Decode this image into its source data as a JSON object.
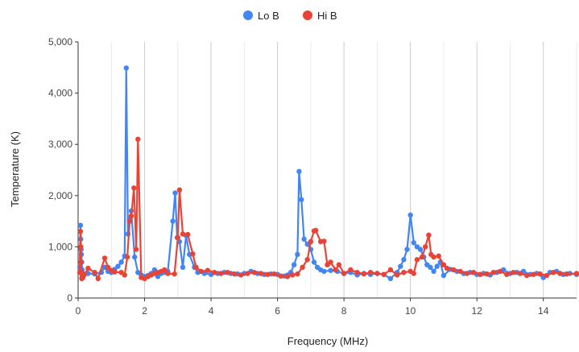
{
  "chart_data": {
    "type": "line",
    "xlabel": "Frequency (MHz)",
    "ylabel": "Temperature (K)",
    "xlim": [
      0,
      15
    ],
    "ylim": [
      0,
      5000
    ],
    "x_ticks": [
      "0",
      "2",
      "4",
      "6",
      "8",
      "10",
      "12",
      "14"
    ],
    "y_ticks": [
      "0",
      "1,000",
      "2,000",
      "3,000",
      "4,000",
      "5,000"
    ],
    "legend_position": "top",
    "grid": "vertical",
    "series": [
      {
        "name": "Lo B",
        "color": "#4285f4",
        "points": [
          [
            0.05,
            600
          ],
          [
            0.07,
            1420
          ],
          [
            0.08,
            1150
          ],
          [
            0.09,
            950
          ],
          [
            0.1,
            850
          ],
          [
            0.11,
            700
          ],
          [
            0.12,
            550
          ],
          [
            0.14,
            480
          ],
          [
            0.18,
            450
          ],
          [
            0.3,
            480
          ],
          [
            0.5,
            470
          ],
          [
            0.7,
            500
          ],
          [
            0.8,
            600
          ],
          [
            0.9,
            520
          ],
          [
            1.0,
            500
          ],
          [
            1.1,
            560
          ],
          [
            1.2,
            620
          ],
          [
            1.3,
            700
          ],
          [
            1.4,
            820
          ],
          [
            1.45,
            4490
          ],
          [
            1.5,
            1250
          ],
          [
            1.55,
            1550
          ],
          [
            1.6,
            1700
          ],
          [
            1.7,
            800
          ],
          [
            1.8,
            500
          ],
          [
            1.9,
            450
          ],
          [
            2.0,
            420
          ],
          [
            2.1,
            440
          ],
          [
            2.2,
            480
          ],
          [
            2.3,
            550
          ],
          [
            2.4,
            420
          ],
          [
            2.5,
            480
          ],
          [
            2.6,
            500
          ],
          [
            2.7,
            520
          ],
          [
            2.85,
            1500
          ],
          [
            2.92,
            2050
          ],
          [
            2.98,
            1180
          ],
          [
            3.05,
            1100
          ],
          [
            3.15,
            600
          ],
          [
            3.25,
            1220
          ],
          [
            3.35,
            850
          ],
          [
            3.5,
            600
          ],
          [
            3.6,
            500
          ],
          [
            3.8,
            480
          ],
          [
            4.0,
            460
          ],
          [
            4.2,
            480
          ],
          [
            4.4,
            500
          ],
          [
            4.6,
            480
          ],
          [
            4.8,
            470
          ],
          [
            5.0,
            480
          ],
          [
            5.2,
            520
          ],
          [
            5.4,
            480
          ],
          [
            5.6,
            460
          ],
          [
            5.8,
            470
          ],
          [
            6.0,
            460
          ],
          [
            6.2,
            430
          ],
          [
            6.3,
            450
          ],
          [
            6.4,
            500
          ],
          [
            6.5,
            650
          ],
          [
            6.6,
            850
          ],
          [
            6.65,
            2470
          ],
          [
            6.72,
            1920
          ],
          [
            6.8,
            1150
          ],
          [
            6.9,
            1050
          ],
          [
            7.0,
            950
          ],
          [
            7.1,
            700
          ],
          [
            7.2,
            600
          ],
          [
            7.3,
            550
          ],
          [
            7.4,
            520
          ],
          [
            7.6,
            540
          ],
          [
            7.8,
            520
          ],
          [
            8.0,
            480
          ],
          [
            8.2,
            500
          ],
          [
            8.4,
            450
          ],
          [
            8.6,
            480
          ],
          [
            8.8,
            460
          ],
          [
            9.0,
            480
          ],
          [
            9.2,
            460
          ],
          [
            9.4,
            380
          ],
          [
            9.6,
            500
          ],
          [
            9.7,
            620
          ],
          [
            9.8,
            750
          ],
          [
            9.9,
            950
          ],
          [
            10.0,
            1620
          ],
          [
            10.1,
            1080
          ],
          [
            10.2,
            1000
          ],
          [
            10.3,
            950
          ],
          [
            10.4,
            800
          ],
          [
            10.5,
            650
          ],
          [
            10.6,
            600
          ],
          [
            10.7,
            520
          ],
          [
            10.8,
            620
          ],
          [
            10.9,
            700
          ],
          [
            11.0,
            440
          ],
          [
            11.2,
            560
          ],
          [
            11.4,
            520
          ],
          [
            11.6,
            480
          ],
          [
            11.8,
            500
          ],
          [
            12.0,
            460
          ],
          [
            12.2,
            480
          ],
          [
            12.4,
            450
          ],
          [
            12.6,
            500
          ],
          [
            12.8,
            550
          ],
          [
            13.0,
            480
          ],
          [
            13.2,
            500
          ],
          [
            13.4,
            520
          ],
          [
            13.6,
            460
          ],
          [
            13.8,
            480
          ],
          [
            14.0,
            400
          ],
          [
            14.2,
            500
          ],
          [
            14.4,
            520
          ],
          [
            14.6,
            460
          ],
          [
            14.8,
            480
          ],
          [
            15.0,
            460
          ]
        ]
      },
      {
        "name": "Hi B",
        "color": "#ea4335",
        "points": [
          [
            0.05,
            500
          ],
          [
            0.07,
            1300
          ],
          [
            0.08,
            1000
          ],
          [
            0.09,
            700
          ],
          [
            0.1,
            500
          ],
          [
            0.11,
            380
          ],
          [
            0.12,
            420
          ],
          [
            0.14,
            400
          ],
          [
            0.18,
            450
          ],
          [
            0.3,
            580
          ],
          [
            0.5,
            500
          ],
          [
            0.6,
            380
          ],
          [
            0.8,
            780
          ],
          [
            0.9,
            600
          ],
          [
            1.0,
            540
          ],
          [
            1.1,
            510
          ],
          [
            1.3,
            500
          ],
          [
            1.4,
            450
          ],
          [
            1.48,
            800
          ],
          [
            1.55,
            1500
          ],
          [
            1.6,
            1600
          ],
          [
            1.68,
            2150
          ],
          [
            1.75,
            950
          ],
          [
            1.8,
            3100
          ],
          [
            1.9,
            400
          ],
          [
            2.0,
            380
          ],
          [
            2.1,
            420
          ],
          [
            2.2,
            450
          ],
          [
            2.3,
            480
          ],
          [
            2.4,
            500
          ],
          [
            2.5,
            520
          ],
          [
            2.6,
            550
          ],
          [
            2.7,
            480
          ],
          [
            2.9,
            470
          ],
          [
            3.0,
            1180
          ],
          [
            3.05,
            2110
          ],
          [
            3.15,
            1250
          ],
          [
            3.3,
            1240
          ],
          [
            3.45,
            860
          ],
          [
            3.55,
            600
          ],
          [
            3.7,
            520
          ],
          [
            3.9,
            540
          ],
          [
            4.1,
            500
          ],
          [
            4.3,
            480
          ],
          [
            4.5,
            500
          ],
          [
            4.7,
            470
          ],
          [
            4.9,
            450
          ],
          [
            5.1,
            480
          ],
          [
            5.3,
            500
          ],
          [
            5.5,
            480
          ],
          [
            5.7,
            460
          ],
          [
            5.9,
            470
          ],
          [
            6.1,
            430
          ],
          [
            6.3,
            420
          ],
          [
            6.45,
            450
          ],
          [
            6.6,
            470
          ],
          [
            6.75,
            600
          ],
          [
            6.9,
            750
          ],
          [
            7.0,
            1100
          ],
          [
            7.1,
            1310
          ],
          [
            7.15,
            1320
          ],
          [
            7.3,
            1100
          ],
          [
            7.4,
            1110
          ],
          [
            7.5,
            650
          ],
          [
            7.6,
            700
          ],
          [
            7.75,
            550
          ],
          [
            7.85,
            650
          ],
          [
            8.0,
            480
          ],
          [
            8.2,
            550
          ],
          [
            8.4,
            500
          ],
          [
            8.6,
            470
          ],
          [
            8.8,
            500
          ],
          [
            9.0,
            480
          ],
          [
            9.2,
            460
          ],
          [
            9.4,
            550
          ],
          [
            9.6,
            450
          ],
          [
            9.8,
            500
          ],
          [
            10.0,
            520
          ],
          [
            10.1,
            480
          ],
          [
            10.2,
            750
          ],
          [
            10.35,
            800
          ],
          [
            10.45,
            1000
          ],
          [
            10.55,
            1230
          ],
          [
            10.62,
            850
          ],
          [
            10.7,
            800
          ],
          [
            10.85,
            820
          ],
          [
            11.0,
            650
          ],
          [
            11.1,
            580
          ],
          [
            11.3,
            550
          ],
          [
            11.5,
            520
          ],
          [
            11.7,
            480
          ],
          [
            11.9,
            500
          ],
          [
            12.1,
            460
          ],
          [
            12.3,
            470
          ],
          [
            12.5,
            500
          ],
          [
            12.7,
            520
          ],
          [
            12.9,
            460
          ],
          [
            13.1,
            500
          ],
          [
            13.3,
            480
          ],
          [
            13.5,
            440
          ],
          [
            13.7,
            460
          ],
          [
            13.9,
            470
          ],
          [
            14.1,
            440
          ],
          [
            14.3,
            500
          ],
          [
            14.5,
            480
          ],
          [
            14.7,
            470
          ],
          [
            15.0,
            480
          ]
        ]
      }
    ]
  }
}
